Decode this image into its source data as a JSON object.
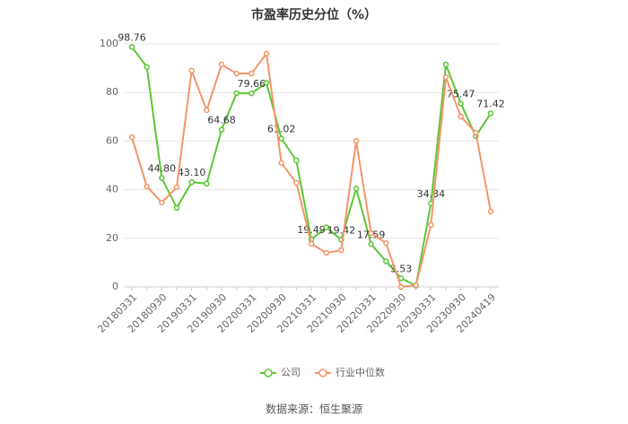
{
  "chart_data": {
    "type": "line",
    "title": "市盈率历史分位（%）",
    "categories": [
      "20180331",
      null,
      "20180930",
      null,
      "20190331",
      null,
      "20190930",
      null,
      "20200331",
      null,
      "20200930",
      null,
      "20210331",
      null,
      "20210930",
      null,
      "20220331",
      null,
      "20220930",
      null,
      "20230331",
      null,
      "20230930",
      null,
      "20240419"
    ],
    "series": [
      {
        "name": "公司",
        "color": "#5cc636",
        "values": [
          98.76,
          90.5,
          44.8,
          32.5,
          43.1,
          42.5,
          64.68,
          79.7,
          79.66,
          84,
          61.02,
          52,
          19.49,
          24.5,
          19.42,
          40.5,
          17.59,
          10.5,
          3.53,
          0.5,
          34.34,
          91.5,
          75.47,
          62,
          71.42
        ],
        "value_labels": [
          "98.76",
          null,
          "44.80",
          null,
          "43.10",
          null,
          "64.68",
          null,
          "79.66",
          null,
          "61.02",
          null,
          "19.49",
          null,
          "19.42",
          null,
          "17.59",
          null,
          "3.53",
          null,
          "34.34",
          null,
          "75.47",
          null,
          "71.42"
        ]
      },
      {
        "name": "行业中位数",
        "color": "#f4946a",
        "values": [
          61.6,
          41.3,
          34.7,
          41,
          89,
          72.7,
          91.5,
          87.8,
          87.8,
          96,
          51,
          42.8,
          17.7,
          14,
          15.1,
          60.1,
          22.1,
          18,
          0,
          0.7,
          25.5,
          86.3,
          70.1,
          63.5,
          31
        ]
      }
    ],
    "ylim": [
      0,
      100
    ],
    "yticks": [
      0,
      20,
      40,
      60,
      80,
      100
    ],
    "grid": true,
    "source": "数据来源：恒生聚源"
  }
}
